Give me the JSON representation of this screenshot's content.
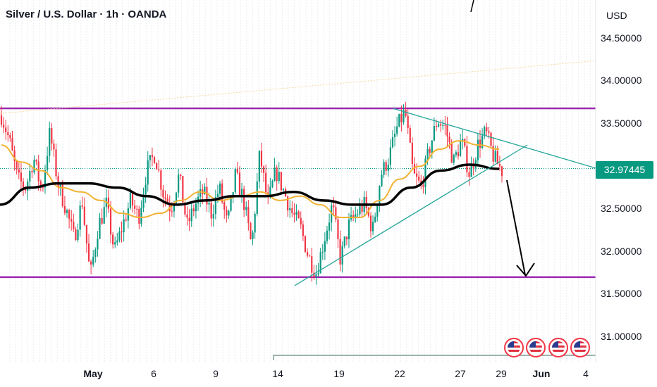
{
  "header": {
    "title": "Silver / U.S. Dollar · 1h · OANDA",
    "currency": "USD"
  },
  "last_price": {
    "value": "32.97445",
    "color": "#089981"
  },
  "colors": {
    "candle_up": "#089981",
    "candle_down": "#f23645",
    "range_lines": "#9c27b0",
    "trendlines": "#26a69a",
    "ma_fast": "#f2b233",
    "ma_slow": "#000000",
    "event_flag": "#f23645"
  },
  "event_flags": [
    "us-flag-icon",
    "us-flag-icon",
    "us-flag-icon",
    "us-flag-icon"
  ],
  "chart_data": {
    "type": "candlestick",
    "title": "Silver / U.S. Dollar · 1h · OANDA",
    "xlabel": "",
    "ylabel": "USD",
    "ylim": [
      30.7,
      34.95
    ],
    "y_ticks": [
      "34.50000",
      "34.00000",
      "33.50000",
      "33.00000",
      "32.50000",
      "32.00000",
      "31.50000",
      "31.00000"
    ],
    "x_ticks": [
      {
        "label": "May",
        "bold": true
      },
      {
        "label": "6",
        "bold": false
      },
      {
        "label": "9",
        "bold": false
      },
      {
        "label": "14",
        "bold": false
      },
      {
        "label": "19",
        "bold": false
      },
      {
        "label": "22",
        "bold": false
      },
      {
        "label": "27",
        "bold": false
      },
      {
        "label": "29",
        "bold": false
      },
      {
        "label": "Jun",
        "bold": true
      },
      {
        "label": "4",
        "bold": false
      }
    ],
    "last_price": 32.97445,
    "price_path": [
      33.6,
      33.3,
      32.85,
      32.75,
      33.1,
      32.7,
      33.4,
      32.8,
      32.5,
      32.15,
      32.6,
      31.7,
      32.3,
      32.55,
      32.0,
      32.3,
      32.6,
      32.4,
      32.95,
      33.15,
      32.7,
      32.5,
      32.9,
      32.3,
      32.55,
      32.7,
      32.45,
      32.75,
      32.3,
      32.9,
      32.6,
      32.05,
      33.15,
      32.55,
      32.95,
      32.7,
      32.45,
      32.3,
      31.95,
      31.75,
      32.15,
      32.55,
      31.9,
      32.3,
      32.45,
      32.55,
      32.25,
      32.9,
      33.1,
      33.45,
      33.65,
      32.9,
      32.75,
      33.2,
      33.55,
      33.45,
      33.05,
      33.3,
      32.9,
      33.25,
      33.4,
      33.1,
      32.95
    ],
    "ma_fast_path": [
      33.25,
      33.05,
      32.95,
      32.75,
      32.7,
      32.6,
      32.45,
      32.4,
      32.45,
      32.6,
      32.7,
      32.6,
      32.65,
      32.7,
      32.6,
      32.65,
      32.55,
      32.4,
      32.4,
      32.6,
      32.85,
      33.0,
      33.2,
      33.3,
      33.25,
      33.2
    ],
    "ma_slow_path": [
      32.55,
      32.75,
      32.8,
      32.8,
      32.75,
      32.65,
      32.55,
      32.6,
      32.65,
      32.65,
      32.7,
      32.6,
      32.55,
      32.55,
      32.75,
      32.95,
      33.02,
      32.97
    ],
    "range_high": 33.68,
    "range_low": 31.7,
    "upper_trendline": [
      [
        33.68,
        0
      ],
      [
        32.98,
        1
      ]
    ],
    "lower_trendline": [
      [
        31.6,
        0
      ],
      [
        33.25,
        1
      ]
    ],
    "annotation": "arrow-down-projection"
  }
}
